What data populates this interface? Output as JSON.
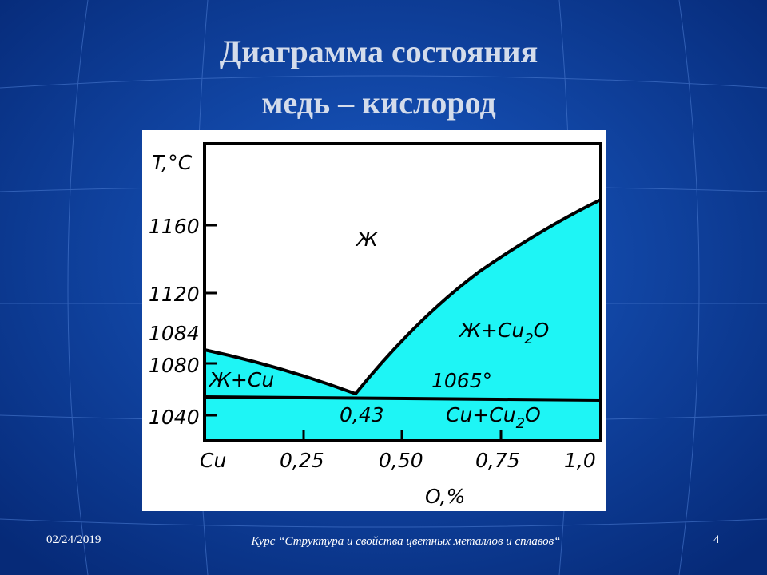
{
  "header": {
    "title": [
      "Диаграмма состояния",
      "медь – кислород"
    ]
  },
  "diagram": {
    "y_axis": {
      "label": "T,°C",
      "ticks": [
        "1160",
        "1120",
        "1084",
        "1080",
        "1040"
      ]
    },
    "x_axis": {
      "label": "O,%",
      "ticks": [
        "Cu",
        "0,25",
        "0,50",
        "0,75",
        "1,0"
      ]
    },
    "regions": {
      "liquid": "Ж",
      "liquid_cu": "Ж+Cu",
      "liquid_cu2o": [
        "Ж+Cu",
        "2",
        "O"
      ],
      "cu_cu2o": [
        "Cu+Cu",
        "2",
        "O"
      ]
    },
    "annotations": {
      "eutectic_temp": "1065°",
      "eutectic_point": "0,43"
    }
  },
  "footer": {
    "date": "02/24/2019",
    "course": "Курс “Структура и свойства цветных металлов и сплавов“",
    "page": "4"
  }
}
